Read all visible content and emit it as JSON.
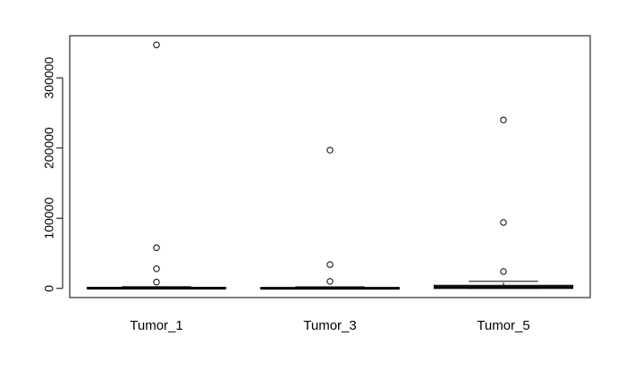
{
  "chart_data": {
    "type": "boxplot",
    "title": "",
    "xlabel": "",
    "ylabel": "",
    "ylim": [
      -13000,
      360000
    ],
    "y_ticks": [
      0,
      100000,
      200000,
      300000
    ],
    "y_tick_labels": [
      "0",
      "100000",
      "200000",
      "300000"
    ],
    "categories": [
      "Tumor_1",
      "Tumor_3",
      "Tumor_5"
    ],
    "boxes": [
      {
        "name": "Tumor_1",
        "fill": "#ffffff",
        "q1": 0,
        "median": 300,
        "q3": 1200,
        "whisker_low": 0,
        "whisker_high": 2500,
        "outliers": [
          347000,
          58000,
          28000,
          9000
        ]
      },
      {
        "name": "Tumor_3",
        "fill": "#ffffff",
        "q1": 0,
        "median": 200,
        "q3": 1000,
        "whisker_low": 0,
        "whisker_high": 2200,
        "outliers": [
          197000,
          34000,
          10000
        ]
      },
      {
        "name": "Tumor_5",
        "fill": "#2ca02c",
        "q1": 0,
        "median": 1500,
        "q3": 4500,
        "whisker_low": 0,
        "whisker_high": 10000,
        "outliers": [
          240000,
          94000,
          24000
        ]
      }
    ],
    "grid": false,
    "legend": "none"
  }
}
